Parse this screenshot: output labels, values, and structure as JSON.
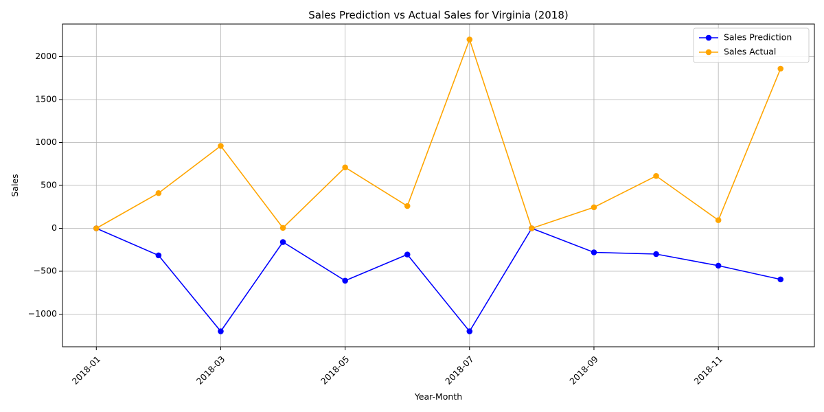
{
  "chart_data": {
    "type": "line",
    "title": "Sales Prediction vs Actual Sales for Virginia (2018)",
    "xlabel": "Year-Month",
    "ylabel": "Sales",
    "x": [
      "2018-01",
      "2018-02",
      "2018-03",
      "2018-04",
      "2018-05",
      "2018-06",
      "2018-07",
      "2018-08",
      "2018-09",
      "2018-10",
      "2018-11",
      "2018-12"
    ],
    "x_tick_labels": [
      "2018-01",
      "2018-03",
      "2018-05",
      "2018-07",
      "2018-09",
      "2018-11"
    ],
    "y_ticks": [
      -1000,
      -500,
      0,
      500,
      1000,
      1500,
      2000
    ],
    "ylim": [
      -1380,
      2380
    ],
    "grid": true,
    "legend_position": "top-right",
    "series": [
      {
        "name": "Sales Prediction",
        "color": "#0000ff",
        "values": [
          0,
          -315,
          -1200,
          -160,
          -610,
          -305,
          -1200,
          0,
          -280,
          -300,
          -435,
          -595
        ]
      },
      {
        "name": "Sales Actual",
        "color": "#ffa500",
        "values": [
          0,
          410,
          960,
          5,
          710,
          260,
          2200,
          0,
          245,
          610,
          95,
          1860
        ]
      }
    ]
  }
}
